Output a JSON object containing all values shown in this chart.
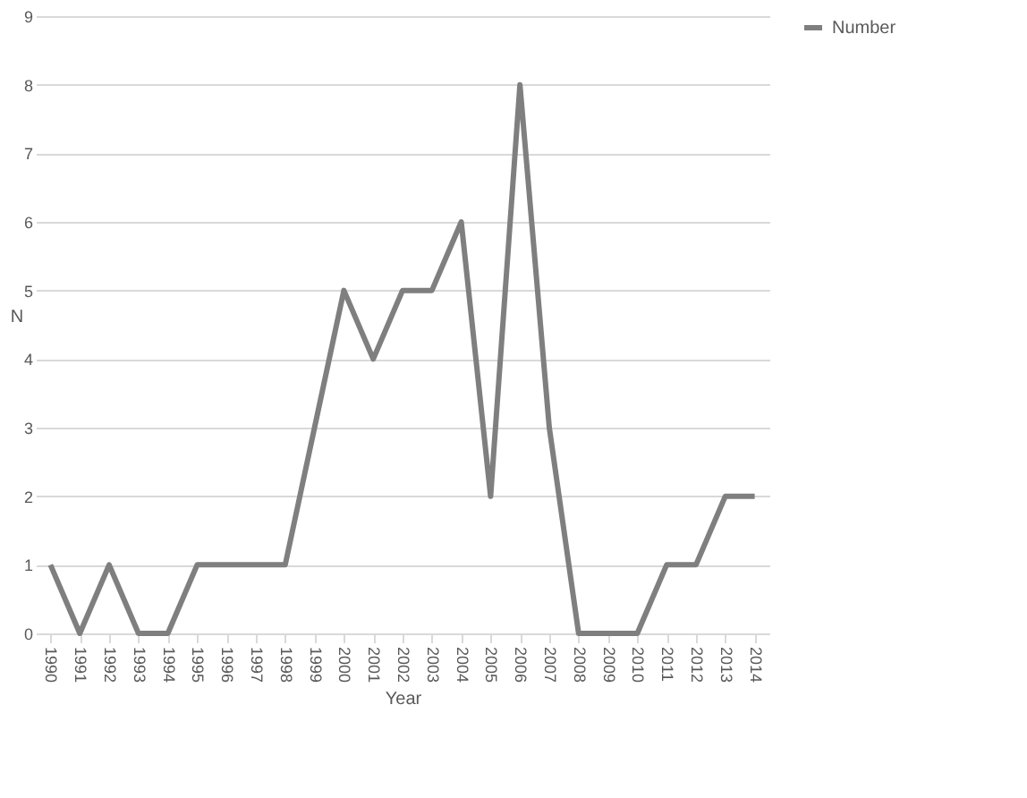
{
  "chart_data": {
    "type": "line",
    "xlabel": "Year",
    "ylabel": "N",
    "categories": [
      "1990",
      "1991",
      "1992",
      "1993",
      "1994",
      "1995",
      "1996",
      "1997",
      "1998",
      "1999",
      "2000",
      "2001",
      "2002",
      "2003",
      "2004",
      "2005",
      "2006",
      "2007",
      "2008",
      "2009",
      "2010",
      "2011",
      "2012",
      "2013",
      "2014"
    ],
    "series": [
      {
        "name": "Number",
        "color": "#7f7f7f",
        "values": [
          1,
          0,
          1,
          0,
          0,
          1,
          1,
          1,
          1,
          3,
          5,
          4,
          5,
          5,
          6,
          2,
          8,
          3,
          0,
          0,
          0,
          1,
          1,
          2,
          2
        ]
      }
    ],
    "ylim": [
      0,
      9
    ],
    "yticks": [
      0,
      1,
      2,
      3,
      4,
      5,
      6,
      7,
      8,
      9
    ],
    "grid": "y",
    "legend": "right",
    "marker": "none",
    "line_style": "solid"
  }
}
